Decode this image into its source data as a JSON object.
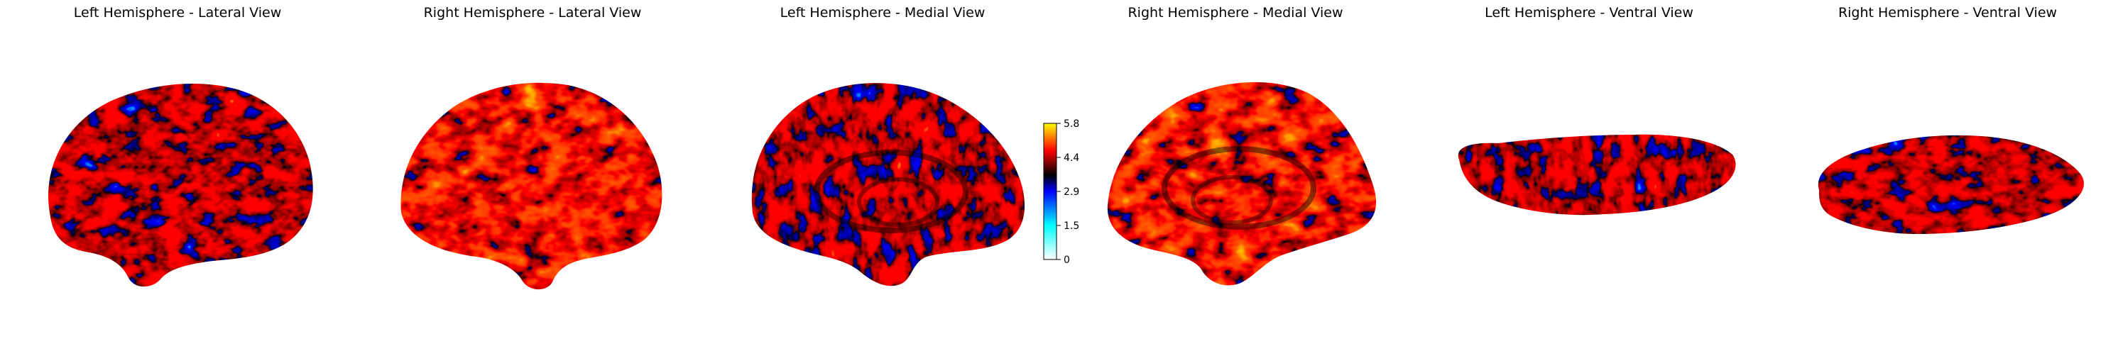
{
  "panels": [
    {
      "title": "Left Hemisphere - Lateral View"
    },
    {
      "title": "Right Hemisphere - Lateral View"
    },
    {
      "title": "Left Hemisphere - Medial View"
    },
    {
      "title": "Right Hemisphere - Medial View"
    },
    {
      "title": "Left Hemisphere - Ventral View"
    },
    {
      "title": "Right Hemisphere - Ventral View"
    }
  ],
  "colorbar": {
    "ticks": [
      "5.8",
      "4.4",
      "2.9",
      "1.5",
      "0"
    ],
    "colormap": [
      "#ffffff",
      "#00ffff",
      "#0000ff",
      "#000000",
      "#ff0000",
      "#ffff00"
    ]
  }
}
